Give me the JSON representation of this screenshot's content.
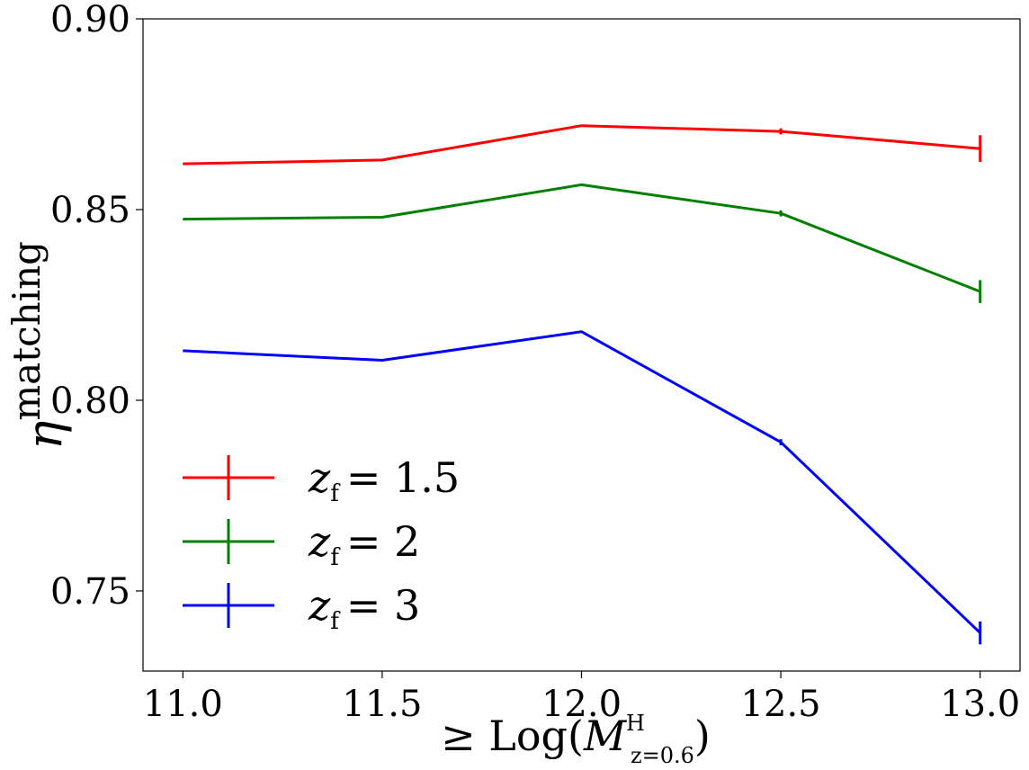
{
  "chart_data": {
    "type": "line",
    "xlabel": {
      "prefix": "≥ Log(",
      "symbol": "M",
      "superscript": "H",
      "subscript": "z=0.6",
      "suffix": ")"
    },
    "ylabel": {
      "symbol": "η",
      "superscript": "matching"
    },
    "x": [
      11.0,
      11.5,
      12.0,
      12.5,
      13.0
    ],
    "x_tick_labels": [
      "11.0",
      "11.5",
      "12.0",
      "12.5",
      "13.0"
    ],
    "xlim": [
      10.9,
      13.1
    ],
    "ylim": [
      0.729,
      0.9
    ],
    "y_ticks": [
      0.75,
      0.8,
      0.85,
      0.9
    ],
    "y_tick_labels": [
      "0.75",
      "0.80",
      "0.85",
      "0.90"
    ],
    "grid": false,
    "legend_position": "bottom-left",
    "series": [
      {
        "key": "zf15",
        "legend": {
          "symbol": "z",
          "subscript": "f",
          "value": "= 1.5"
        },
        "color": "#ff0000",
        "values": [
          0.862,
          0.863,
          0.872,
          0.8705,
          0.866
        ],
        "errors": [
          0.0,
          0.0,
          0.0,
          0.0008,
          0.0035
        ]
      },
      {
        "key": "zf2",
        "legend": {
          "symbol": "z",
          "subscript": "f",
          "value": "= 2"
        },
        "color": "#008000",
        "values": [
          0.8475,
          0.848,
          0.8565,
          0.849,
          0.8285
        ],
        "errors": [
          0.0,
          0.0,
          0.0,
          0.0008,
          0.003
        ]
      },
      {
        "key": "zf3",
        "legend": {
          "symbol": "z",
          "subscript": "f",
          "value": "= 3"
        },
        "color": "#0000ff",
        "values": [
          0.813,
          0.8105,
          0.818,
          0.789,
          0.739
        ],
        "errors": [
          0.0,
          0.0,
          0.0,
          0.0008,
          0.003
        ]
      }
    ]
  }
}
